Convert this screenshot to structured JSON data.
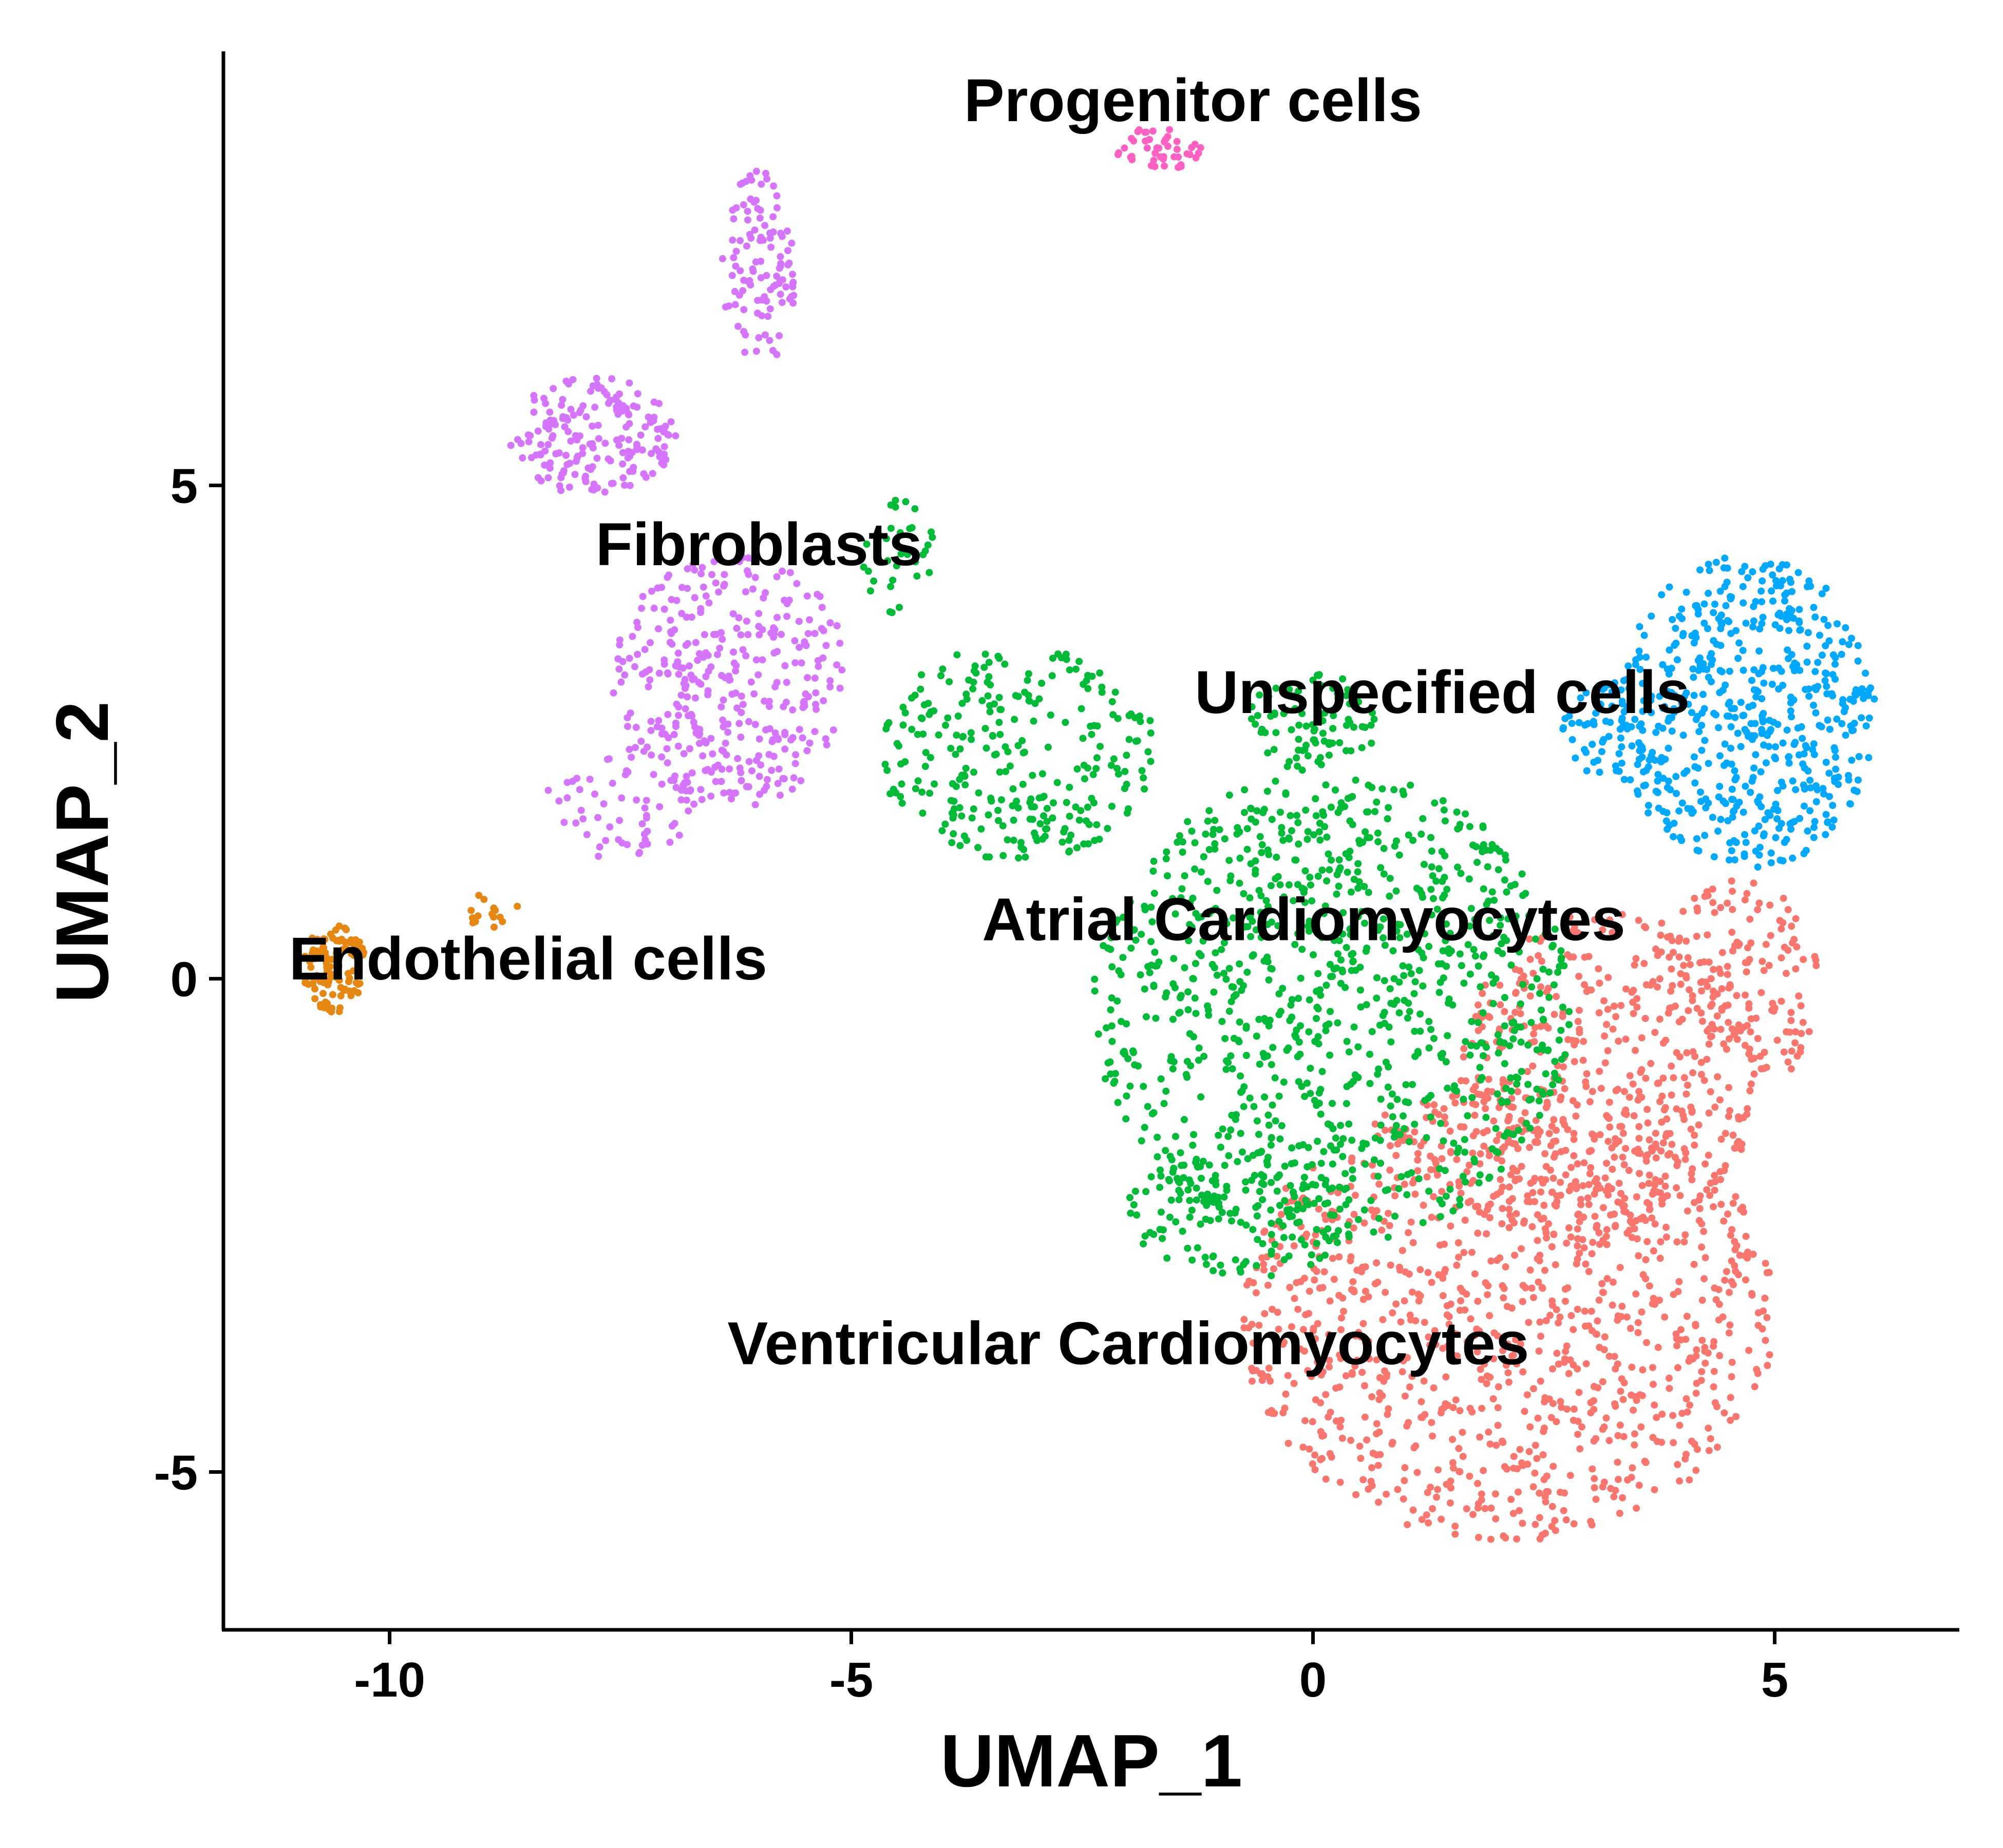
{
  "chart_data": {
    "type": "scatter",
    "title": "",
    "xlabel": "UMAP_1",
    "ylabel": "UMAP_2",
    "xlim": [
      -11.8,
      7.0
    ],
    "ylim": [
      -6.6,
      9.4
    ],
    "xticks": [
      -10,
      -5,
      0,
      5
    ],
    "yticks": [
      -5,
      0,
      5
    ],
    "grid": false,
    "legend": "none",
    "series": [
      {
        "name": "Ventricular Cardiomyocytes",
        "color": "#F8766D",
        "label_pos": [
          -2.0,
          -3.7
        ],
        "regions": [
          {
            "cx": 2.1,
            "cy": -3.4,
            "rx": 2.9,
            "ry": 2.3,
            "n": 1050
          },
          {
            "cx": 3.2,
            "cy": -1.0,
            "rx": 1.6,
            "ry": 1.7,
            "n": 480
          },
          {
            "cx": 4.6,
            "cy": 0.2,
            "rx": 0.9,
            "ry": 0.8,
            "n": 110
          },
          {
            "cx": 5.0,
            "cy": -0.6,
            "rx": 0.4,
            "ry": 0.4,
            "n": 30
          }
        ]
      },
      {
        "name": "Atrial Cardiomyocytes",
        "color": "#00BA38",
        "label_pos": [
          -0.1,
          0.6
        ],
        "regions": [
          {
            "cx": 0.2,
            "cy": -0.3,
            "rx": 2.6,
            "ry": 2.4,
            "n": 1000
          },
          {
            "cx": -3.2,
            "cy": 2.3,
            "rx": 1.5,
            "ry": 1.1,
            "n": 280
          },
          {
            "cx": -0.8,
            "cy": -2.3,
            "rx": 1.2,
            "ry": 0.8,
            "n": 150
          },
          {
            "cx": 0.0,
            "cy": 2.6,
            "rx": 0.7,
            "ry": 0.5,
            "n": 90
          },
          {
            "cx": -4.5,
            "cy": 4.3,
            "rx": 0.4,
            "ry": 0.6,
            "n": 35
          }
        ]
      },
      {
        "name": "Unspecified cells",
        "color": "#00A9FF",
        "label_pos": [
          1.4,
          2.9
        ],
        "regions": [
          {
            "cx": 4.7,
            "cy": 2.7,
            "rx": 1.4,
            "ry": 1.6,
            "n": 560
          },
          {
            "cx": 3.3,
            "cy": 2.5,
            "rx": 0.6,
            "ry": 0.5,
            "n": 70
          }
        ]
      },
      {
        "name": "Fibroblasts",
        "color": "#D575FE",
        "label_pos": [
          -6.0,
          4.4
        ],
        "regions": [
          {
            "cx": -6.3,
            "cy": 3.0,
            "rx": 1.3,
            "ry": 1.3,
            "n": 360
          },
          {
            "cx": -7.8,
            "cy": 5.5,
            "rx": 0.9,
            "ry": 0.6,
            "n": 180
          },
          {
            "cx": -6.0,
            "cy": 7.2,
            "rx": 0.4,
            "ry": 1.0,
            "n": 110
          },
          {
            "cx": -7.5,
            "cy": 1.8,
            "rx": 0.8,
            "ry": 0.6,
            "n": 60
          }
        ]
      },
      {
        "name": "Endothelial cells",
        "color": "#E68613",
        "label_pos": [
          -8.5,
          0.2
        ],
        "regions": [
          {
            "cx": -10.6,
            "cy": 0.1,
            "rx": 0.35,
            "ry": 0.45,
            "n": 110
          },
          {
            "cx": -8.9,
            "cy": 0.7,
            "rx": 0.3,
            "ry": 0.2,
            "n": 15
          }
        ]
      },
      {
        "name": "Progenitor cells",
        "color": "#FF61C3",
        "label_pos": [
          -1.3,
          8.9
        ],
        "regions": [
          {
            "cx": -1.7,
            "cy": 8.4,
            "rx": 0.5,
            "ry": 0.22,
            "n": 45
          }
        ]
      }
    ]
  }
}
